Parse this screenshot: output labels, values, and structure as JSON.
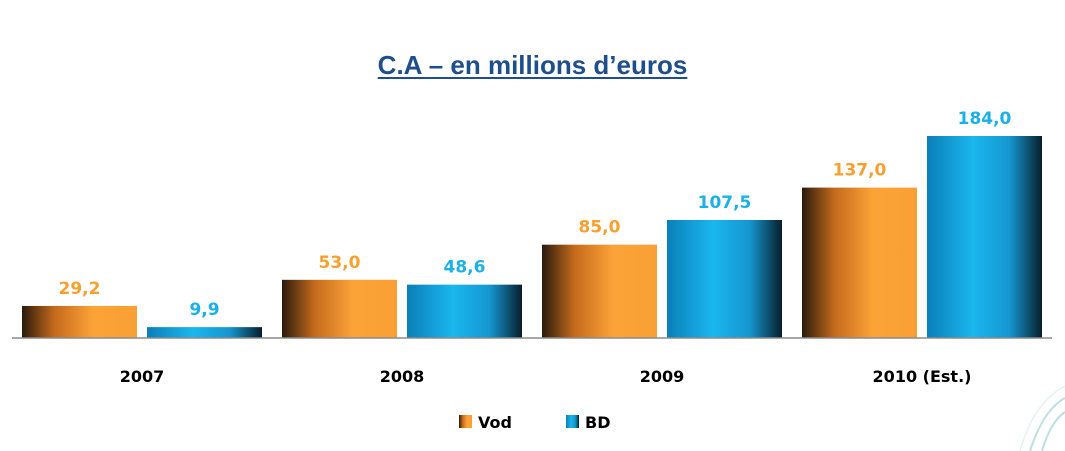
{
  "chart_data": {
    "type": "bar",
    "title": "C.A – en millions d’euros",
    "categories": [
      "2007",
      "2008",
      "2009",
      "2010 (Est.)"
    ],
    "series": [
      {
        "name": "Vod",
        "values": [
          29.2,
          53.0,
          85.0,
          137.0
        ],
        "labels": [
          "29,2",
          "53,0",
          "85,0",
          "137,0"
        ],
        "color": "#f7a030"
      },
      {
        "name": "BD",
        "values": [
          9.9,
          48.6,
          107.5,
          184.0
        ],
        "labels": [
          "9,9",
          "48,6",
          "107,5",
          "184,0"
        ],
        "color": "#1ab0e8"
      }
    ],
    "ylim": [
      0,
      184
    ],
    "grid": false,
    "legend": "bottom-center"
  }
}
